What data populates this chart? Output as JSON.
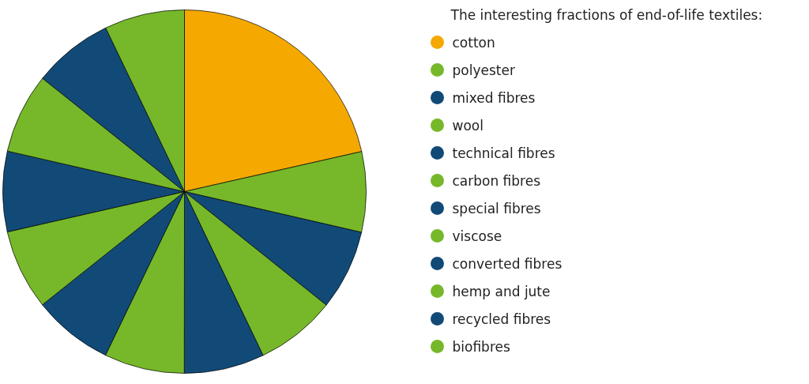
{
  "chart_data": {
    "type": "pie",
    "legend_title": "The interesting fractions of end-of-life textiles:",
    "categories": [
      "cotton",
      "polyester",
      "mixed fibres",
      "wool",
      "technical fibres",
      "carbon fibres",
      "special fibres",
      "viscose",
      "converted fibres",
      "hemp and jute",
      "recycled fibres",
      "biofibres"
    ],
    "values": [
      21.46,
      7.14,
      7.14,
      7.14,
      7.14,
      7.14,
      7.14,
      7.14,
      7.14,
      7.14,
      7.14,
      7.14
    ],
    "colors": [
      "#f5a800",
      "#76b82a",
      "#124a77",
      "#76b82a",
      "#124a77",
      "#76b82a",
      "#124a77",
      "#76b82a",
      "#124a77",
      "#76b82a",
      "#124a77",
      "#76b82a"
    ],
    "legend": "right"
  }
}
